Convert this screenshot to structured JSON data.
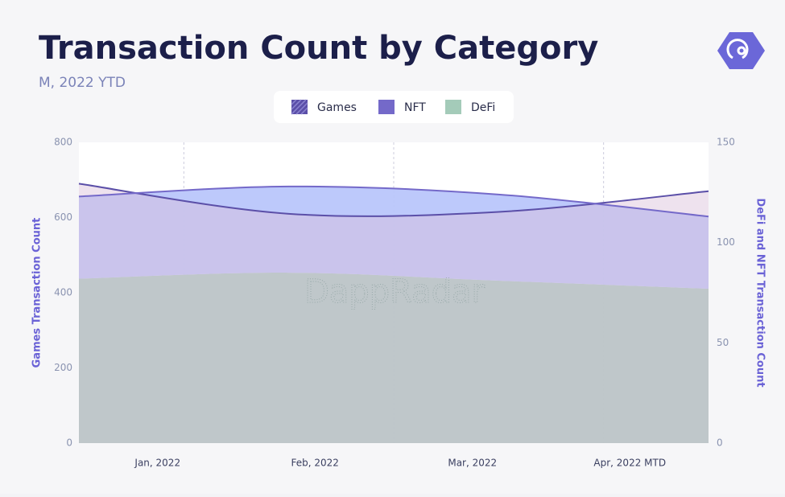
{
  "title": "Transaction Count by Category",
  "subtitle": "M, 2022 YTD",
  "watermark": "DappRadar",
  "chart_data": {
    "type": "area",
    "categories": [
      "Jan, 2022",
      "Feb, 2022",
      "Mar, 2022",
      "Apr, 2022 MTD"
    ],
    "series": [
      {
        "name": "Games",
        "color": "#5b4fa8",
        "fill": "#d9bfd9",
        "values": [
          690,
          610,
          615,
          670
        ],
        "axis": "y"
      },
      {
        "name": "NFT",
        "color": "#7469c9",
        "fill": "#b9c6fb",
        "values": [
          41,
          43,
          43,
          36
        ],
        "axis": "y2"
      },
      {
        "name": "DeFi",
        "color": "#a4cbb9",
        "fill": "#a4cbb9",
        "values": [
          82,
          85,
          81,
          77
        ],
        "axis": "y2"
      }
    ],
    "ylabel": "Games Transaction Count",
    "y2label": "DeFi and NFT Transaction Count",
    "ylim": [
      0,
      800
    ],
    "yticks": [
      0,
      200,
      400,
      600,
      800
    ],
    "y2lim": [
      0,
      150
    ],
    "y2ticks": [
      0,
      50,
      100,
      150
    ],
    "stacked_y2": true,
    "grid": true
  }
}
